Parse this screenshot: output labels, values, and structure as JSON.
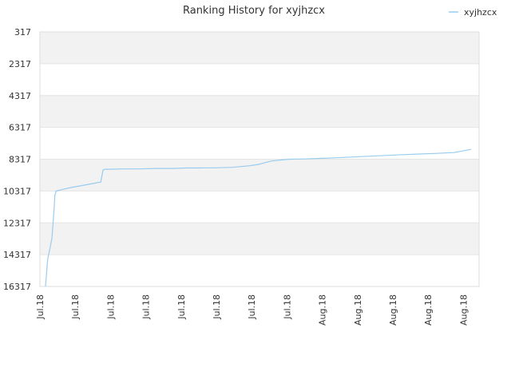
{
  "chart_data": {
    "type": "line",
    "title": "Ranking History for xyjhzcx",
    "xlabel": "",
    "ylabel": "",
    "y_reversed": true,
    "ylim": [
      317,
      16317
    ],
    "y_ticks": [
      317,
      2317,
      4317,
      6317,
      8317,
      10317,
      12317,
      14317,
      16317
    ],
    "y_tick_labels": [
      "317",
      "2317",
      "4317",
      "6317",
      "8317",
      "10317",
      "12317",
      "14317",
      "16317"
    ],
    "x_tick_labels": [
      "Jul.18",
      "Jul.18",
      "Jul.18",
      "Jul.18",
      "Jul.18",
      "Jul.18",
      "Jul.18",
      "Jul.18",
      "Aug.18",
      "Aug.18",
      "Aug.18",
      "Aug.18",
      "Aug.18"
    ],
    "grid": true,
    "alternating_bands": true,
    "legend_position": "top-right",
    "series": [
      {
        "name": "xyjhzcx",
        "color": "#99ccee",
        "x": [
          0,
          0.5,
          1,
          1.5,
          2,
          2.2,
          2.5,
          4,
          6,
          8,
          10,
          12,
          13,
          13.5,
          14,
          15,
          18,
          22,
          26,
          30,
          33,
          36,
          40,
          44,
          48,
          50,
          53,
          57,
          61,
          65,
          68,
          72,
          76,
          80,
          84,
          88,
          92,
          96,
          100
        ],
        "values": [
          16317,
          14600,
          14000,
          13300,
          11500,
          10600,
          10317,
          10220,
          10100,
          10000,
          9900,
          9800,
          9750,
          9000,
          8950,
          8950,
          8930,
          8930,
          8900,
          8900,
          8870,
          8870,
          8860,
          8830,
          8730,
          8650,
          8430,
          8320,
          8300,
          8260,
          8230,
          8180,
          8130,
          8080,
          8030,
          7990,
          7950,
          7900,
          7700
        ]
      }
    ]
  }
}
